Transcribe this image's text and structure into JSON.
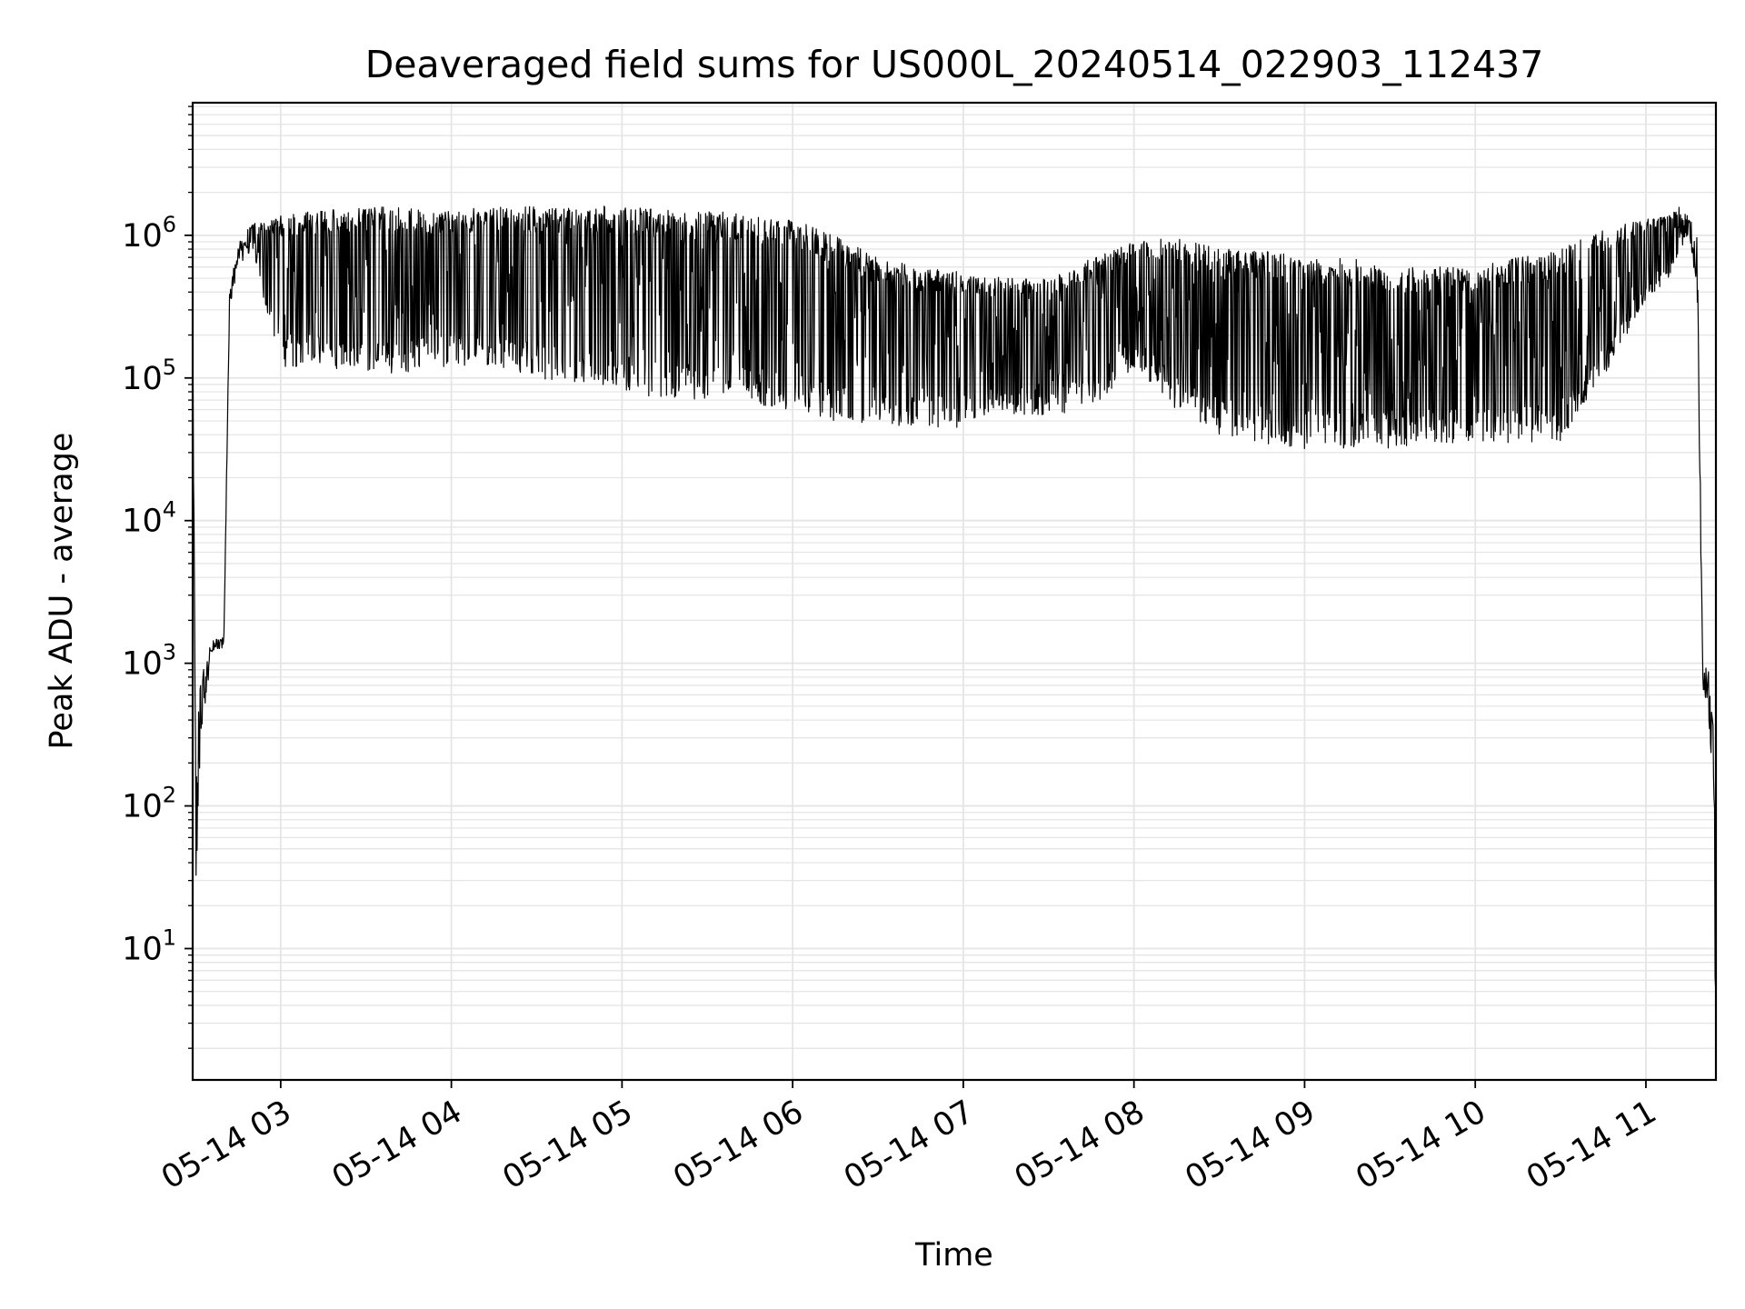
{
  "chart_data": {
    "type": "line",
    "title": "Deaveraged field sums for US000L_20240514_022903_112437",
    "xlabel": "Time",
    "ylabel": "Peak ADU - average",
    "yscale": "log",
    "ylim": [
      1.2,
      8500000
    ],
    "xlim": [
      "2024-05-14 02:29:03",
      "2024-05-14 11:24:37"
    ],
    "grid": true,
    "line_color": "#000000",
    "grid_color": "#e5e5e5",
    "x_ticks": [
      {
        "time": "2024-05-14 03:00",
        "label": "05-14 03"
      },
      {
        "time": "2024-05-14 04:00",
        "label": "05-14 04"
      },
      {
        "time": "2024-05-14 05:00",
        "label": "05-14 05"
      },
      {
        "time": "2024-05-14 06:00",
        "label": "05-14 06"
      },
      {
        "time": "2024-05-14 07:00",
        "label": "05-14 07"
      },
      {
        "time": "2024-05-14 08:00",
        "label": "05-14 08"
      },
      {
        "time": "2024-05-14 09:00",
        "label": "05-14 09"
      },
      {
        "time": "2024-05-14 10:00",
        "label": "05-14 10"
      },
      {
        "time": "2024-05-14 11:00",
        "label": "05-14 11"
      }
    ],
    "y_ticks": [
      {
        "value": 10,
        "base": "10",
        "exp": "1"
      },
      {
        "value": 100,
        "base": "10",
        "exp": "2"
      },
      {
        "value": 1000,
        "base": "10",
        "exp": "3"
      },
      {
        "value": 10000,
        "base": "10",
        "exp": "4"
      },
      {
        "value": 100000,
        "base": "10",
        "exp": "5"
      },
      {
        "value": 1000000,
        "base": "10",
        "exp": "6"
      }
    ],
    "series": [
      {
        "envelope": {
          "time": [
            "02:29:10",
            "02:30:00",
            "02:32:00",
            "02:35:00",
            "02:38:00",
            "02:40:00",
            "02:42:00",
            "02:45:00",
            "02:50:00",
            "02:55:00",
            "03:00:00",
            "03:15:00",
            "03:30:00",
            "03:45:00",
            "04:00:00",
            "04:15:00",
            "04:30:00",
            "04:45:00",
            "05:00:00",
            "05:15:00",
            "05:30:00",
            "05:45:00",
            "06:00:00",
            "06:15:00",
            "06:30:00",
            "06:45:00",
            "07:00:00",
            "07:15:00",
            "07:30:00",
            "07:45:00",
            "08:00:00",
            "08:15:00",
            "08:30:00",
            "08:45:00",
            "09:00:00",
            "09:15:00",
            "09:30:00",
            "09:45:00",
            "10:00:00",
            "10:15:00",
            "10:30:00",
            "10:45:00",
            "11:00:00",
            "11:08:00",
            "11:12:00",
            "11:15:00",
            "11:18:00",
            "11:20:00",
            "11:22:00",
            "11:24:00",
            "11:24:30"
          ],
          "high": [
            150000,
            300,
            800,
            1400,
            1500,
            1600,
            400000,
            900000,
            1200000,
            1300000,
            1400000,
            1500000,
            1600000,
            1550000,
            1500000,
            1600000,
            1600000,
            1600000,
            1600000,
            1500000,
            1500000,
            1400000,
            1300000,
            1000000,
            700000,
            600000,
            550000,
            500000,
            500000,
            700000,
            900000,
            1000000,
            800000,
            800000,
            700000,
            700000,
            600000,
            600000,
            600000,
            700000,
            800000,
            1100000,
            1300000,
            1400000,
            1600000,
            1400000,
            1000000,
            1000,
            900,
            300,
            8
          ],
          "low": [
            100000,
            20,
            300,
            900,
            1200,
            1300,
            300000,
            600000,
            800000,
            300000,
            120000,
            120000,
            100000,
            110000,
            120000,
            120000,
            100000,
            90000,
            80000,
            70000,
            70000,
            65000,
            60000,
            50000,
            45000,
            45000,
            45000,
            55000,
            55000,
            60000,
            120000,
            60000,
            40000,
            35000,
            32000,
            32000,
            32000,
            35000,
            35000,
            35000,
            35000,
            100000,
            350000,
            500000,
            800000,
            1000000,
            400000,
            600,
            400,
            100,
            1.2
          ]
        }
      }
    ]
  }
}
